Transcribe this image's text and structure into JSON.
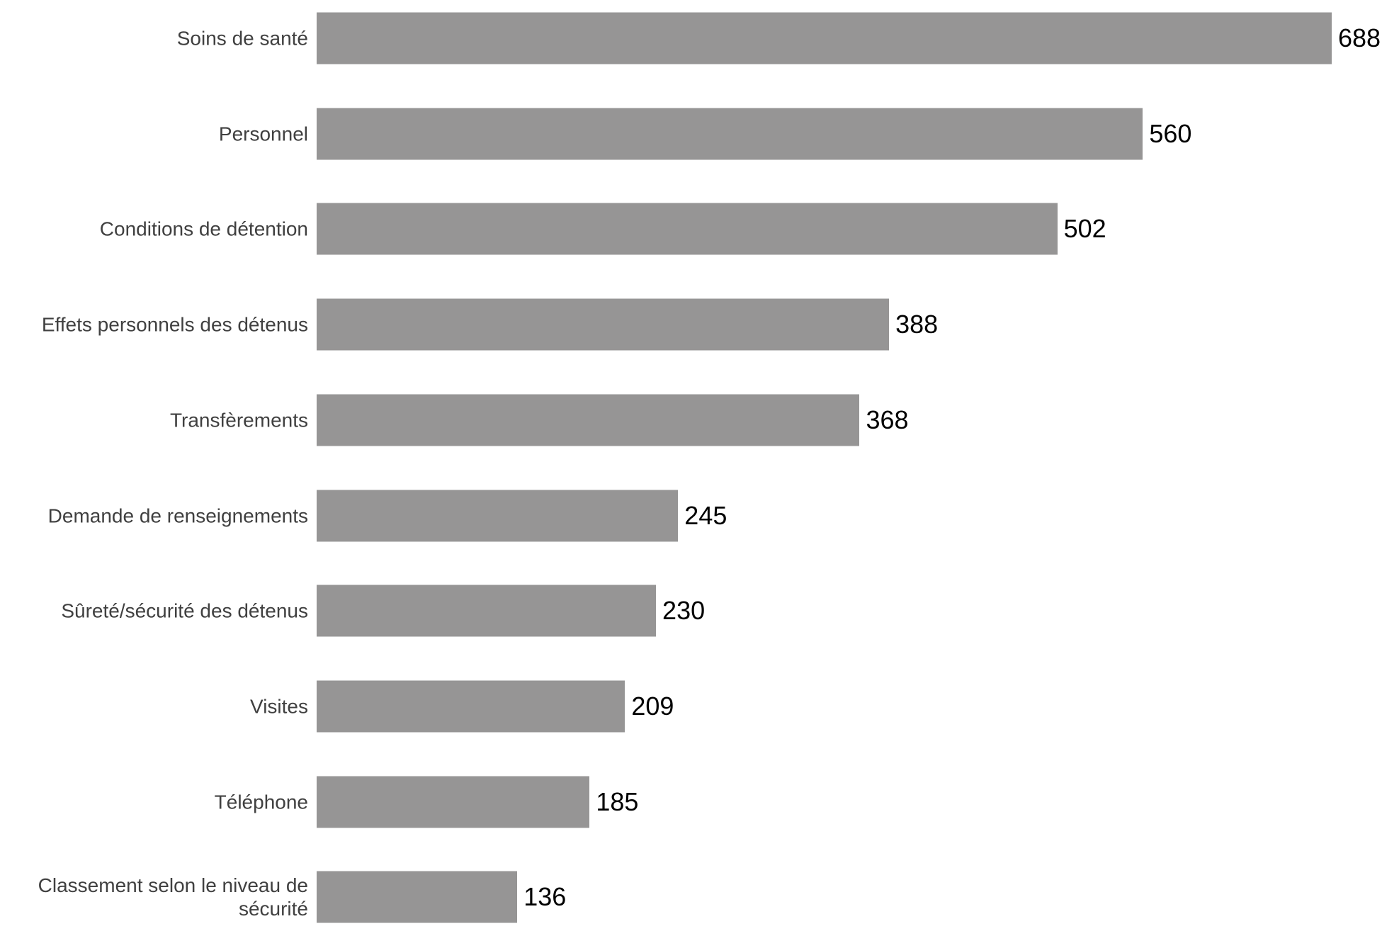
{
  "chart_data": {
    "type": "bar",
    "orientation": "horizontal",
    "categories": [
      "Soins de santé",
      "Personnel",
      "Conditions de détention",
      "Effets personnels des détenus",
      "Transfèrements",
      "Demande de renseignements",
      "Sûreté/sécurité des détenus",
      "Visites",
      "Téléphone",
      "Classement selon le niveau de sécurité"
    ],
    "values": [
      688,
      560,
      502,
      388,
      368,
      245,
      230,
      209,
      185,
      136
    ],
    "color": "#969595"
  }
}
